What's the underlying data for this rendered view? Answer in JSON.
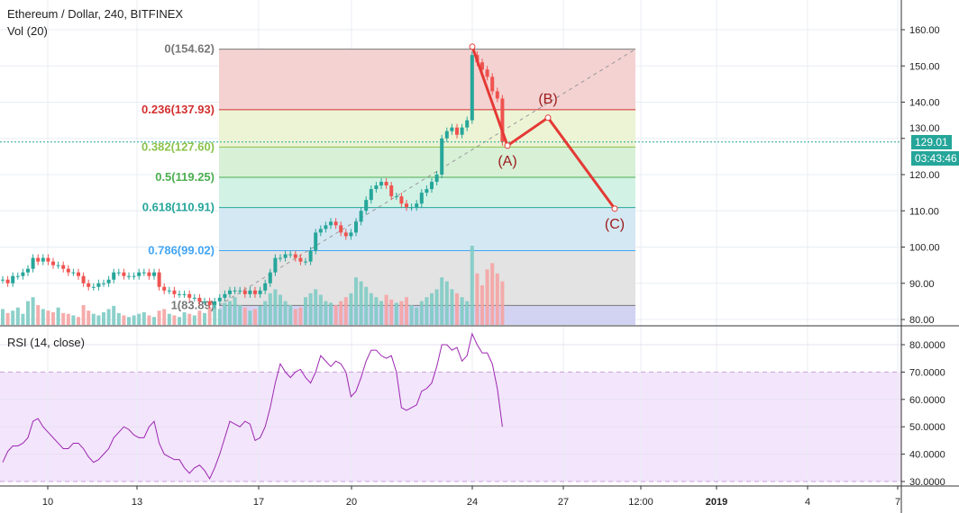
{
  "header": {
    "title": "Ethereum / Dollar, 240, BITFINEX",
    "volume_label": "Vol (20)",
    "rsi_label": "RSI (14, close)"
  },
  "price_tag": {
    "value": "129.01",
    "countdown": "03:43:46",
    "color": "#26a69a"
  },
  "chart_data": {
    "type": "candlestick",
    "price_axis": {
      "ticks": [
        "160.00",
        "150.00",
        "140.00",
        "130.00",
        "120.00",
        "110.00",
        "100.00",
        "90.00",
        "80.00"
      ],
      "range": [
        80,
        160
      ]
    },
    "rsi_axis": {
      "ticks": [
        "80.0000",
        "70.0000",
        "60.0000",
        "50.0000",
        "40.0000",
        "30.0000"
      ],
      "range": [
        30,
        80
      ],
      "band": [
        30,
        70
      ]
    },
    "time_axis": {
      "ticks": [
        "10",
        "13",
        "17",
        "20",
        "24",
        "27",
        "12:00",
        "2019",
        "4",
        "7"
      ]
    },
    "closes": [
      91,
      90,
      92,
      92,
      93,
      94,
      97,
      96,
      97,
      96,
      95,
      95,
      94,
      93,
      93,
      92,
      90,
      89,
      89,
      90,
      90,
      91,
      93,
      93,
      92,
      92,
      92,
      93,
      93,
      92,
      93,
      89,
      88,
      88,
      87,
      87,
      87,
      86,
      86,
      85,
      85,
      84,
      85,
      86,
      87,
      88,
      88,
      88,
      87,
      88,
      87,
      88,
      90,
      93,
      97,
      97,
      98,
      98,
      97,
      96,
      96,
      99,
      104,
      105,
      106,
      107,
      106,
      104,
      103,
      104,
      107,
      110,
      113,
      116,
      117,
      118,
      117,
      114,
      114,
      112,
      111,
      111,
      112,
      115,
      116,
      118,
      120,
      130,
      132,
      133,
      131,
      133,
      135,
      153,
      151,
      149,
      147,
      143,
      141,
      129
    ],
    "volume": [
      20,
      15,
      18,
      22,
      14,
      30,
      35,
      25,
      20,
      18,
      16,
      22,
      15,
      14,
      12,
      10,
      25,
      18,
      14,
      12,
      16,
      20,
      24,
      15,
      12,
      10,
      12,
      14,
      16,
      12,
      10,
      18,
      20,
      14,
      12,
      10,
      16,
      14,
      12,
      18,
      15,
      22,
      25,
      20,
      28,
      30,
      35,
      25,
      22,
      18,
      20,
      24,
      30,
      40,
      45,
      38,
      30,
      25,
      20,
      22,
      35,
      40,
      45,
      38,
      30,
      28,
      25,
      30,
      35,
      40,
      60,
      55,
      48,
      40,
      35,
      30,
      38,
      32,
      28,
      30,
      35,
      25,
      22,
      30,
      35,
      40,
      45,
      60,
      55,
      45,
      40,
      35,
      30,
      100,
      65,
      50,
      70,
      78,
      65,
      55
    ],
    "rsi": [
      37,
      41,
      43,
      43,
      44,
      46,
      52,
      53,
      50,
      48,
      46,
      44,
      42,
      42,
      44,
      44,
      42,
      39,
      37,
      38,
      40,
      42,
      46,
      48,
      50,
      49,
      47,
      46,
      46,
      50,
      52,
      44,
      40,
      39,
      38,
      38,
      35,
      33,
      35,
      36,
      34,
      31,
      35,
      40,
      46,
      52,
      51,
      50,
      52,
      51,
      45,
      46,
      50,
      57,
      66,
      73,
      70,
      68,
      70,
      71,
      68,
      66,
      70,
      76,
      74,
      72,
      74,
      73,
      70,
      61,
      63,
      68,
      74,
      78,
      78,
      76,
      75,
      76,
      70,
      57,
      56,
      57,
      58,
      63,
      64,
      66,
      72,
      80,
      80,
      78,
      79,
      74,
      76,
      84,
      80,
      77,
      77,
      73,
      64,
      50
    ],
    "fibonacci": [
      {
        "label": "0(154.62)",
        "price": 154.62,
        "color": "#787878",
        "fill": "#f4d2d2"
      },
      {
        "label": "0.236(137.93)",
        "price": 137.93,
        "color": "#d32f2f",
        "fill": "#ecf4d5"
      },
      {
        "label": "0.382(127.60)",
        "price": 127.6,
        "color": "#8bc34a",
        "fill": "#d7f0d6"
      },
      {
        "label": "0.5(119.25)",
        "price": 119.25,
        "color": "#4caf50",
        "fill": "#d3f2e6"
      },
      {
        "label": "0.618(110.91)",
        "price": 110.91,
        "color": "#26a69a",
        "fill": "#d4e8f3"
      },
      {
        "label": "0.786(99.02)",
        "price": 99.02,
        "color": "#42a5f5",
        "fill": "#e3e3e3"
      },
      {
        "label": "1(83.89)",
        "price": 83.89,
        "color": "#787878",
        "fill": "#d2d3f3"
      }
    ],
    "waves": [
      {
        "label": "",
        "price": 155.3
      },
      {
        "label": "(A)",
        "price": 128.0
      },
      {
        "label": "(B)",
        "price": 135.7
      },
      {
        "label": "(C)",
        "price": 110.6
      }
    ],
    "colors": {
      "up": "#26a69a",
      "down": "#ef5350",
      "rsi": "#9c27b0",
      "rsi_band": "#f3e5fc",
      "wave": "#e53935"
    }
  }
}
